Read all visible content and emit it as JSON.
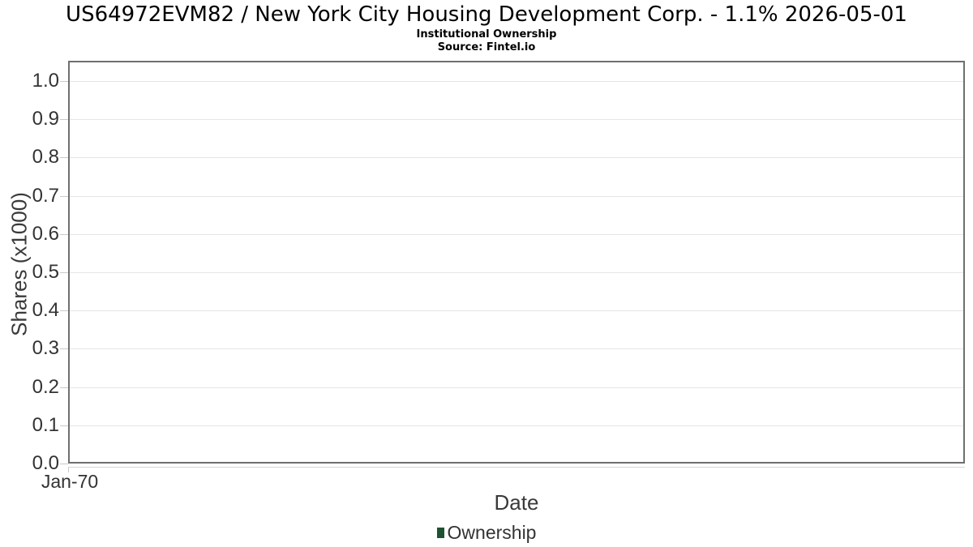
{
  "colors": {
    "page_bg": "#ffffff",
    "title_text": "#000000",
    "axis_text": "#3a3a3a",
    "tick_label_text": "#333333",
    "plot_border": "#6f6f6f",
    "gridline": "#e5e5e5",
    "tick_mark": "#c9c9c9",
    "x_axis_line": "#d6d6d6",
    "ownership_green": "#1e5232"
  },
  "chart_data": {
    "type": "bar",
    "title": "US64972EVM82 / New York City Housing Development Corp. - 1.1% 2026-05-01",
    "subtitle": "Institutional Ownership",
    "source_text": "Source: Fintel.io",
    "xlabel": "Date",
    "ylabel": "Shares (x1000)",
    "ylim": [
      0,
      1.053
    ],
    "yticks": [
      0,
      0.1,
      0.2,
      0.3,
      0.4,
      0.5,
      0.6,
      0.7,
      0.8,
      0.9,
      1.0
    ],
    "ytick_labels": [
      "0.0",
      "0.1",
      "0.2",
      "0.3",
      "0.4",
      "0.5",
      "0.6",
      "0.7",
      "0.8",
      "0.9",
      "1.0"
    ],
    "xtick_labels": [
      "Jan-70"
    ],
    "grid": "horizontal gridlines only",
    "legend_position": "bottom-center",
    "series": [
      {
        "name": "Ownership",
        "color": "#1e5232",
        "x": [],
        "values": []
      }
    ]
  }
}
